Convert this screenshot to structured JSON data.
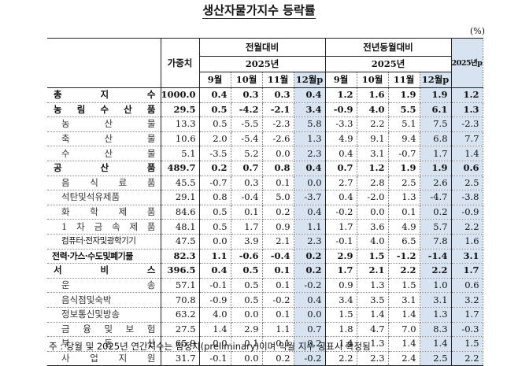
{
  "title": "생산자물가지수 등락률",
  "unit": "(%)",
  "header": {
    "weight_label": "가중치",
    "mom_label": "전월대비",
    "yoy_label": "전년동월대비",
    "year_label": "2025년",
    "annual_label": "2025년p",
    "months": [
      "9월",
      "10월",
      "11월",
      "12월p"
    ]
  },
  "rows": [
    {
      "label": "총 지 수",
      "type": "total",
      "weight": "1000.0",
      "mom": [
        "0.4",
        "0.3",
        "0.3",
        "0.4"
      ],
      "yoy": [
        "1.2",
        "1.6",
        "1.9",
        "1.9"
      ],
      "annual": "1.2"
    },
    {
      "label": "농 림 수 산 품",
      "type": "major",
      "weight": "29.5",
      "mom": [
        "0.5",
        "-4.2",
        "-2.1",
        "3.4"
      ],
      "yoy": [
        "-0.9",
        "4.0",
        "5.5",
        "6.1"
      ],
      "annual": "1.3"
    },
    {
      "label": "농 산 물",
      "type": "sub",
      "weight": "13.3",
      "mom": [
        "0.5",
        "-5.5",
        "-2.3",
        "5.8"
      ],
      "yoy": [
        "-3.3",
        "2.2",
        "5.1",
        "7.5"
      ],
      "annual": "-2.3"
    },
    {
      "label": "축 산 물",
      "type": "sub",
      "weight": "10.6",
      "mom": [
        "2.0",
        "-5.4",
        "-2.6",
        "1.3"
      ],
      "yoy": [
        "4.9",
        "9.1",
        "9.4",
        "6.8"
      ],
      "annual": "7.7"
    },
    {
      "label": "수 산 물",
      "type": "sub",
      "weight": "5.1",
      "mom": [
        "-3.5",
        "5.2",
        "0.0",
        "2.3"
      ],
      "yoy": [
        "0.4",
        "3.1",
        "-0.7",
        "1.7"
      ],
      "annual": "1.4"
    },
    {
      "label": "공 산 품",
      "type": "major",
      "weight": "489.7",
      "mom": [
        "0.2",
        "0.7",
        "0.8",
        "0.4"
      ],
      "yoy": [
        "0.7",
        "1.2",
        "1.9",
        "1.9"
      ],
      "annual": "0.6"
    },
    {
      "label": "음 식 료 품",
      "type": "sub",
      "weight": "45.5",
      "mom": [
        "-0.7",
        "0.3",
        "0.1",
        "0.0"
      ],
      "yoy": [
        "2.7",
        "2.8",
        "2.5",
        "2.6"
      ],
      "annual": "2.5"
    },
    {
      "label": "석탄및석유제품",
      "type": "sub",
      "weight": "29.1",
      "mom": [
        "0.8",
        "-0.4",
        "5.0",
        "-3.7"
      ],
      "yoy": [
        "0.4",
        "-2.0",
        "1.3",
        "-4.7"
      ],
      "annual": "-3.8"
    },
    {
      "label": "화 학 제 품",
      "type": "sub",
      "weight": "84.6",
      "mom": [
        "0.5",
        "0.1",
        "0.2",
        "0.4"
      ],
      "yoy": [
        "-0.2",
        "0.0",
        "0.1",
        "0.2"
      ],
      "annual": "-0.9"
    },
    {
      "label": "1 차 금 속 제 품",
      "type": "sub",
      "weight": "48.1",
      "mom": [
        "0.5",
        "1.7",
        "0.9",
        "1.1"
      ],
      "yoy": [
        "1.7",
        "3.6",
        "4.9",
        "5.7"
      ],
      "annual": "2.2"
    },
    {
      "label": "컴퓨터·전자및광학기기",
      "type": "sub2",
      "weight": "47.5",
      "mom": [
        "0.0",
        "3.9",
        "2.1",
        "2.3"
      ],
      "yoy": [
        "-0.1",
        "4.0",
        "6.5",
        "7.8"
      ],
      "annual": "1.6"
    },
    {
      "label": "전력·가스·수도및폐기물",
      "type": "major-tight",
      "weight": "82.3",
      "mom": [
        "1.1",
        "-0.6",
        "-0.4",
        "0.2"
      ],
      "yoy": [
        "2.9",
        "1.5",
        "-1.2",
        "-1.4"
      ],
      "annual": "3.1"
    },
    {
      "label": "서 비 스",
      "type": "major",
      "weight": "396.5",
      "mom": [
        "0.4",
        "0.5",
        "0.1",
        "0.2"
      ],
      "yoy": [
        "1.7",
        "2.1",
        "2.2",
        "2.2"
      ],
      "annual": "1.7"
    },
    {
      "label": "운 송",
      "type": "sub",
      "weight": "57.1",
      "mom": [
        "-0.1",
        "0.5",
        "0.1",
        "-0.2"
      ],
      "yoy": [
        "0.9",
        "1.3",
        "1.5",
        "1.0"
      ],
      "annual": "0.6"
    },
    {
      "label": "음식점및숙박",
      "type": "sub",
      "weight": "70.8",
      "mom": [
        "-0.9",
        "0.5",
        "-0.2",
        "0.4"
      ],
      "yoy": [
        "3.4",
        "3.5",
        "3.1",
        "3.1"
      ],
      "annual": "3.2"
    },
    {
      "label": "정보통신및방송",
      "type": "sub",
      "weight": "63.2",
      "mom": [
        "4.0",
        "0.0",
        "0.1",
        "0.0"
      ],
      "yoy": [
        "1.5",
        "1.4",
        "1.4",
        "1.3"
      ],
      "annual": "1.7"
    },
    {
      "label": "금 융 및 보 험",
      "type": "sub",
      "weight": "27.5",
      "mom": [
        "1.4",
        "2.9",
        "1.1",
        "0.7"
      ],
      "yoy": [
        "1.8",
        "4.7",
        "7.0",
        "8.3"
      ],
      "annual": "-0.3"
    },
    {
      "label": "부 동 산",
      "type": "sub",
      "weight": "65.9",
      "mom": [
        "0.0",
        "0.1",
        "0.1",
        "0.2"
      ],
      "yoy": [
        "1.4",
        "1.3",
        "1.4",
        "1.4"
      ],
      "annual": "1.5"
    },
    {
      "label": "사 업 지 원",
      "type": "sub",
      "weight": "31.7",
      "mom": [
        "-0.1",
        "0.0",
        "0.2",
        "-0.2"
      ],
      "yoy": [
        "2.2",
        "2.3",
        "2.4",
        "2.5"
      ],
      "annual": "2.2"
    }
  ],
  "note": "주 : 당월 및 2025년 연간지수는 잠정치(preliminary)이며 익월 지수 공표시 확정됨",
  "colors": {
    "shade": "#d7e3f1",
    "border": "#222222"
  }
}
